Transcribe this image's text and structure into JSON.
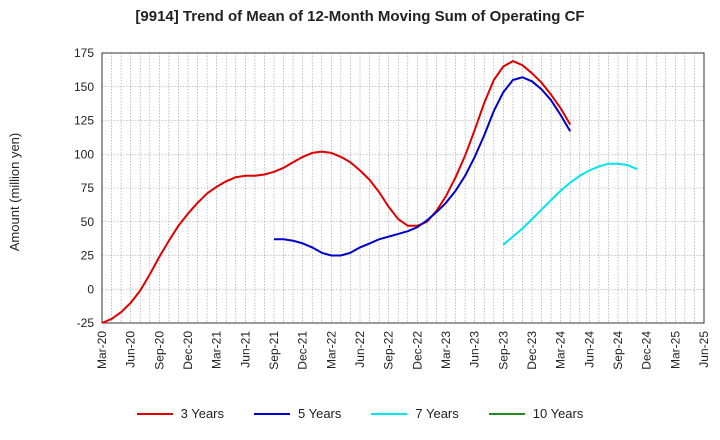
{
  "chart_data": {
    "type": "line",
    "title": "[9914]  Trend of Mean of 12-Month Moving Sum of Operating CF",
    "ylabel": "Amount (million yen)",
    "xlabel": "",
    "ylim": [
      -25,
      175
    ],
    "yticks": [
      -25,
      0,
      25,
      50,
      75,
      100,
      125,
      150,
      175
    ],
    "x_ticks": [
      "Mar-20",
      "Jun-20",
      "Sep-20",
      "Dec-20",
      "Mar-21",
      "Jun-21",
      "Sep-21",
      "Dec-21",
      "Mar-22",
      "Jun-22",
      "Sep-22",
      "Dec-22",
      "Mar-23",
      "Jun-23",
      "Sep-23",
      "Dec-23",
      "Mar-24",
      "Jun-24",
      "Sep-24",
      "Dec-24",
      "Mar-25",
      "Jun-25"
    ],
    "grid": true,
    "legend_position": "bottom",
    "series": [
      {
        "name": "3 Years",
        "color": "#e00000",
        "start_index": 0,
        "values": [
          -25,
          -22,
          -17,
          -10,
          -1,
          11,
          24,
          36,
          47,
          56,
          64,
          71,
          76,
          80,
          83,
          84,
          84,
          85,
          87,
          90,
          94,
          98,
          101,
          102,
          101,
          98,
          94,
          88,
          81,
          72,
          61,
          52,
          47,
          47,
          50,
          58,
          69,
          83,
          99,
          118,
          138,
          155,
          165,
          169,
          166,
          160,
          153,
          144,
          134,
          122
        ]
      },
      {
        "name": "5 Years",
        "color": "#0000cc",
        "start_index": 18,
        "values": [
          37,
          37,
          36,
          34,
          31,
          27,
          25,
          25,
          27,
          31,
          34,
          37,
          39,
          41,
          43,
          46,
          51,
          57,
          64,
          73,
          84,
          98,
          114,
          132,
          146,
          155,
          157,
          154,
          148,
          140,
          129,
          117
        ]
      },
      {
        "name": "7 Years",
        "color": "#00e5ee",
        "start_index": 42,
        "values": [
          33,
          39,
          45,
          52,
          59,
          66,
          73,
          79,
          84,
          88,
          91,
          93,
          93,
          92,
          89
        ]
      },
      {
        "name": "10 Years",
        "color": "#228b22",
        "start_index": 0,
        "values": []
      }
    ]
  }
}
